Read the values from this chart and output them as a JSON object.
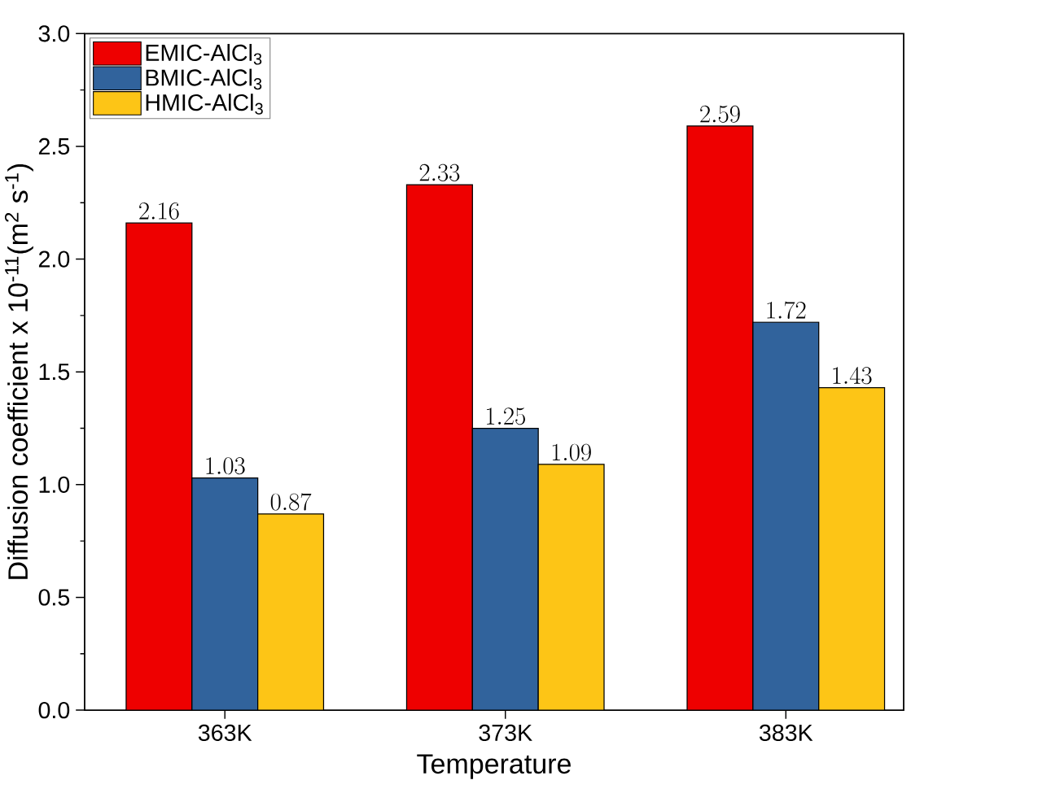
{
  "chart_data": {
    "type": "bar",
    "xlabel": "Temperature",
    "ylabel": "Diffusion coefficient x 10$^{-11}$(m$^{2}$ s$^{-1}$)",
    "categories": [
      "363K",
      "373K",
      "383K"
    ],
    "series": [
      {
        "name": "EMIC-AlCl$_{3}$",
        "color": "#ee0000",
        "values": [
          2.16,
          2.33,
          2.59
        ]
      },
      {
        "name": "BMIC-AlCl$_{3}$",
        "color": "#31639c",
        "values": [
          1.03,
          1.25,
          1.72
        ]
      },
      {
        "name": "HMIC-AlCl$_{3}$",
        "color": "#fdc516",
        "values": [
          0.87,
          1.09,
          1.43
        ]
      }
    ],
    "ylim": [
      0,
      3
    ],
    "yticks": [
      {
        "value": 0,
        "label": "0.0"
      },
      {
        "value": 0.5,
        "label": "0.5"
      },
      {
        "value": 1,
        "label": "1.0"
      },
      {
        "value": 1.5,
        "label": "1.5"
      },
      {
        "value": 2,
        "label": "2.0"
      },
      {
        "value": 2.5,
        "label": "2.5"
      },
      {
        "value": 3,
        "label": "3.0"
      }
    ],
    "data_labels": true,
    "legend": "top left",
    "grid": false
  }
}
